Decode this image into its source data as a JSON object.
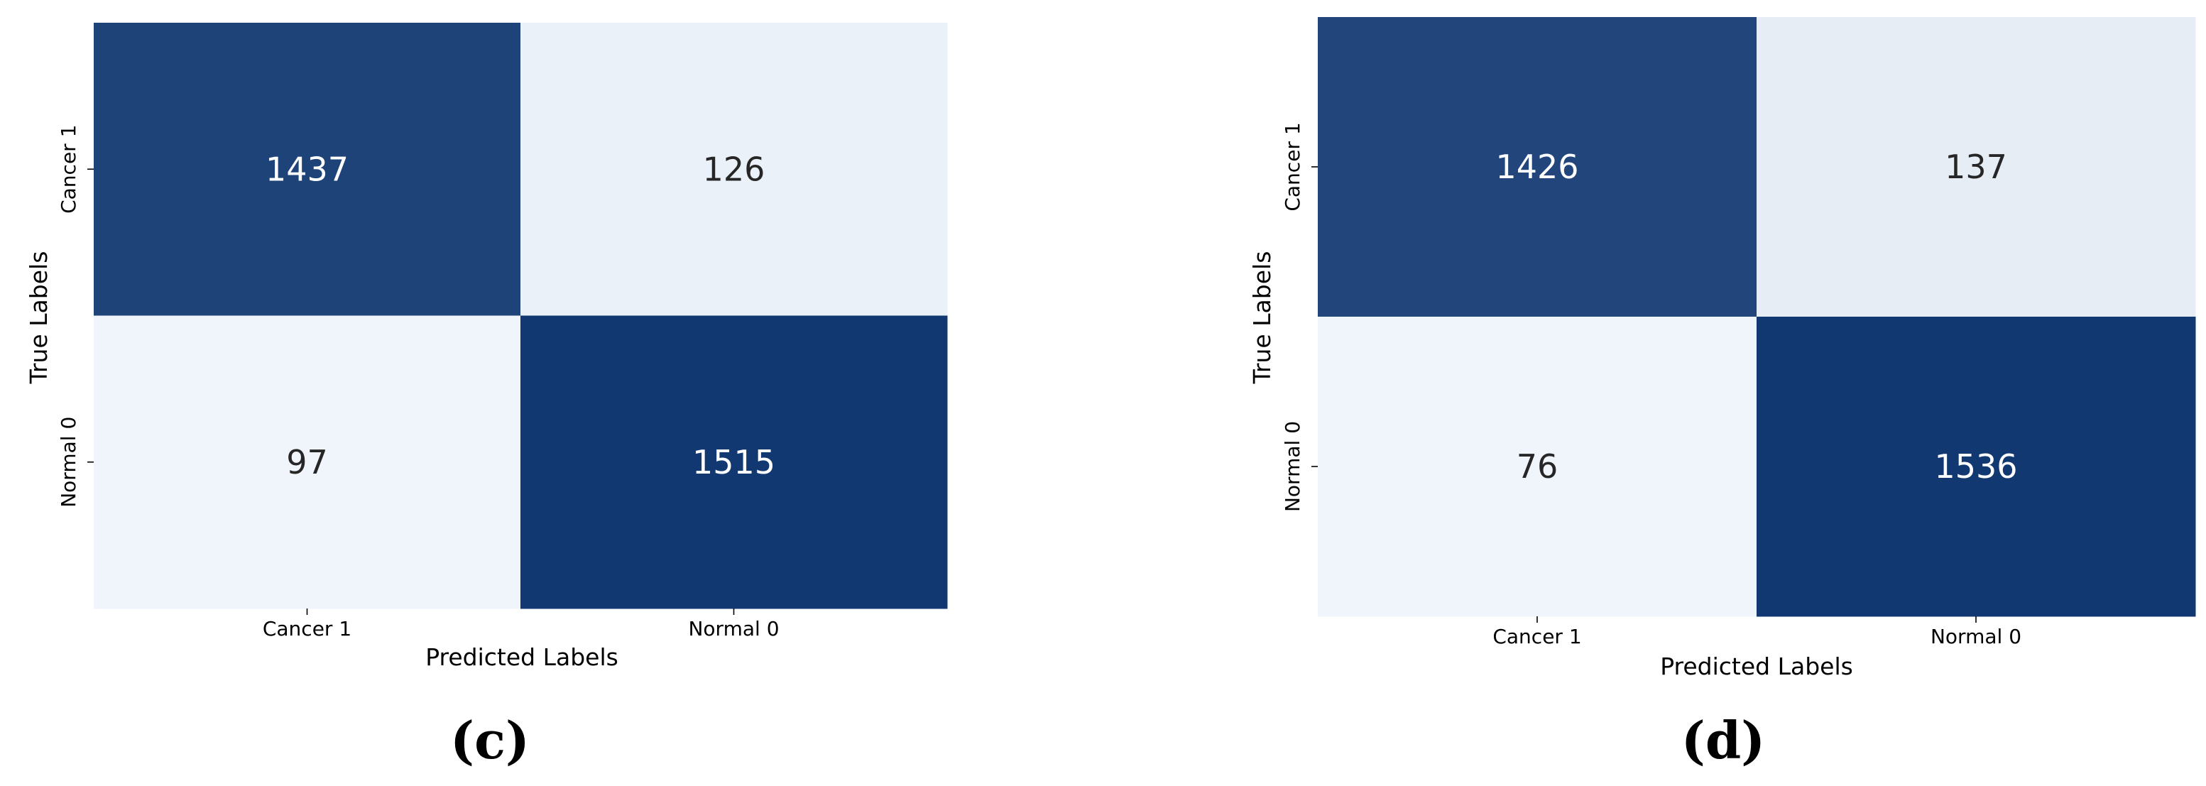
{
  "chart_data": [
    {
      "type": "heatmap",
      "rows": [
        "Cancer 1",
        "Normal 0"
      ],
      "columns": [
        "Cancer 1",
        "Normal 0"
      ],
      "values": [
        [
          1437,
          126
        ],
        [
          97,
          1515
        ]
      ],
      "xlabel": "Predicted Labels",
      "ylabel": "True Labels",
      "caption": "(c)",
      "colormap": "Blues",
      "colors": {
        "low": "#f7fbff",
        "high": "#08306b",
        "text_dark": "#262626",
        "text_light": "#ffffff"
      }
    },
    {
      "type": "heatmap",
      "rows": [
        "Cancer 1",
        "Normal 0"
      ],
      "columns": [
        "Cancer 1",
        "Normal 0"
      ],
      "values": [
        [
          1426,
          137
        ],
        [
          76,
          1536
        ]
      ],
      "xlabel": "Predicted Labels",
      "ylabel": "True Labels",
      "caption": "(d)",
      "colormap": "Blues",
      "colors": {
        "low": "#f7fbff",
        "high": "#08306b",
        "text_dark": "#262626",
        "text_light": "#ffffff"
      }
    }
  ]
}
